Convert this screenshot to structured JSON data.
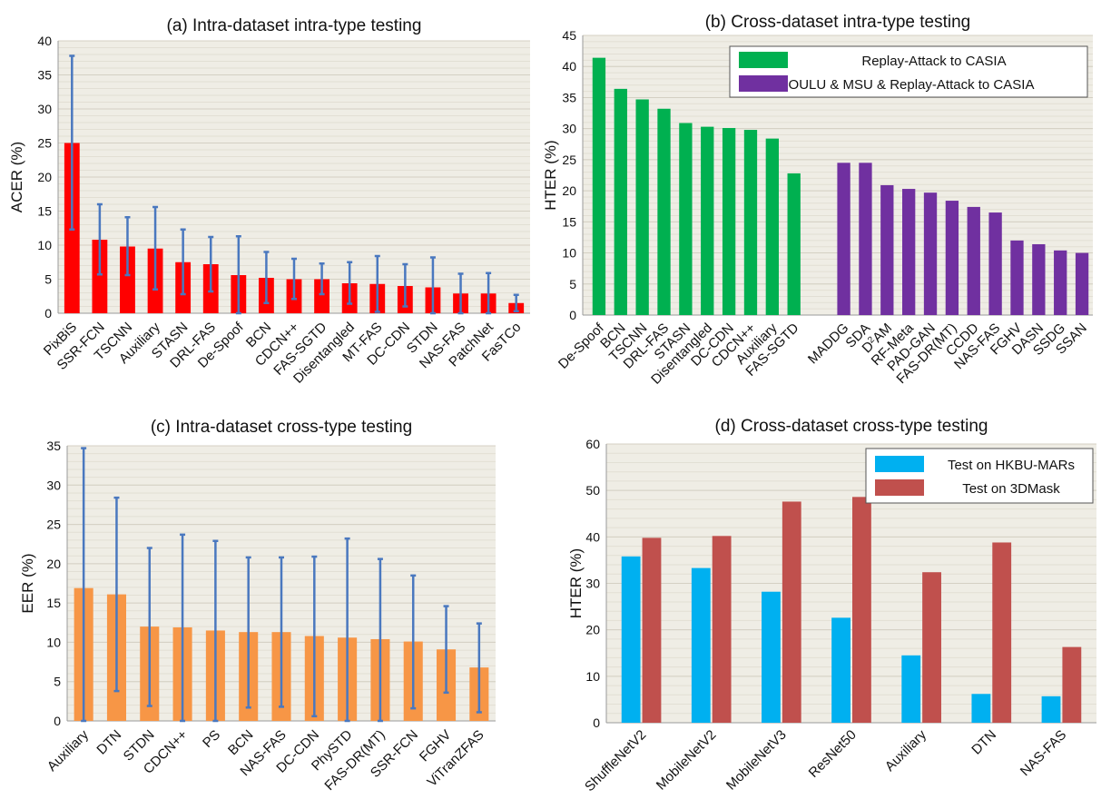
{
  "chart_data": [
    {
      "id": "a",
      "type": "bar",
      "title": "(a) Intra-dataset intra-type testing",
      "ylabel": "ACER (%)",
      "xlabel": "",
      "ylim": [
        0,
        40
      ],
      "yticks": [
        0,
        5,
        10,
        15,
        20,
        25,
        30,
        35,
        40
      ],
      "grid": true,
      "color": "#ff0000",
      "errorbar_color": "#4a78bf",
      "categories": [
        "PixBiS",
        "SSR-FCN",
        "TSCNN",
        "Auxiliary",
        "STASN",
        "DRL-FAS",
        "De-Spoof",
        "BCN",
        "CDCN++",
        "FAS-SGTD",
        "Disentangled",
        "MT-FAS",
        "DC-CDN",
        "STDN",
        "NAS-FAS",
        "PatchNet",
        "FasTCo"
      ],
      "values": [
        25.0,
        10.8,
        9.8,
        9.5,
        7.5,
        7.2,
        5.6,
        5.2,
        5.0,
        5.0,
        4.4,
        4.3,
        4.0,
        3.8,
        2.9,
        2.9,
        1.5
      ],
      "err_low": [
        12.3,
        5.7,
        5.6,
        3.5,
        2.8,
        3.2,
        0.0,
        1.5,
        2.1,
        2.8,
        1.4,
        0.2,
        1.0,
        0.0,
        0.0,
        0.0,
        0.3
      ],
      "err_high": [
        37.8,
        16.0,
        14.1,
        15.6,
        12.3,
        11.2,
        11.3,
        9.0,
        8.0,
        7.3,
        7.5,
        8.4,
        7.2,
        8.2,
        5.8,
        5.9,
        2.7
      ]
    },
    {
      "id": "b",
      "type": "bar",
      "title": "(b) Cross-dataset intra-type testing",
      "ylabel": "HTER (%)",
      "xlabel": "",
      "ylim": [
        0,
        45
      ],
      "yticks": [
        0,
        5,
        10,
        15,
        20,
        25,
        30,
        35,
        40,
        45
      ],
      "grid": true,
      "legend": "top-right",
      "series": [
        {
          "name": "Replay-Attack to CASIA",
          "color": "#00b050",
          "categories": [
            "De-Spoof",
            "BCN",
            "TSCNN",
            "DRL-FAS",
            "STASN",
            "Disentangled",
            "DC-CDN",
            "CDCN++",
            "Auxiliary",
            "FAS-SGTD"
          ],
          "values": [
            41.4,
            36.4,
            34.7,
            33.2,
            30.9,
            30.3,
            30.1,
            29.8,
            28.4,
            22.8
          ]
        },
        {
          "name": "OULU & MSU & Replay-Attack to CASIA",
          "color": "#7030a0",
          "categories": [
            "MADDG",
            "SDA",
            "D2AM",
            "RF-Meta",
            "PAD-GAN",
            "FAS-DR(MT)",
            "CCDD",
            "NAS-FAS",
            "FGHV",
            "DASN",
            "SSDG",
            "SSAN"
          ],
          "values": [
            24.5,
            24.5,
            20.9,
            20.3,
            19.7,
            18.4,
            17.4,
            16.5,
            12.0,
            11.4,
            10.4,
            10.0
          ]
        }
      ]
    },
    {
      "id": "c",
      "type": "bar",
      "title": "(c) Intra-dataset cross-type testing",
      "ylabel": "EER (%)",
      "xlabel": "",
      "ylim": [
        0,
        35
      ],
      "yticks": [
        0,
        5,
        10,
        15,
        20,
        25,
        30,
        35
      ],
      "grid": true,
      "color": "#f79646",
      "errorbar_color": "#4a78bf",
      "categories": [
        "Auxiliary",
        "DTN",
        "STDN",
        "CDCN++",
        "PS",
        "BCN",
        "NAS-FAS",
        "DC-CDN",
        "PhySTD",
        "FAS-DR(MT)",
        "SSR-FCN",
        "FGHV",
        "ViTranZFAS"
      ],
      "values": [
        16.9,
        16.1,
        12.0,
        11.9,
        11.5,
        11.3,
        11.3,
        10.8,
        10.6,
        10.4,
        10.1,
        9.1,
        6.8
      ],
      "err_low": [
        0.0,
        3.8,
        1.9,
        0.0,
        0.0,
        1.7,
        1.8,
        0.6,
        0.0,
        0.0,
        1.6,
        3.6,
        1.1
      ],
      "err_high": [
        34.7,
        28.4,
        22.0,
        23.7,
        22.9,
        20.8,
        20.8,
        20.9,
        23.2,
        20.6,
        18.5,
        14.6,
        12.4
      ]
    },
    {
      "id": "d",
      "type": "bar",
      "title": "(d) Cross-dataset cross-type testing",
      "ylabel": "HTER (%)",
      "xlabel": "",
      "ylim": [
        0,
        60
      ],
      "yticks": [
        0,
        10,
        20,
        30,
        40,
        50,
        60
      ],
      "grid": true,
      "legend": "top-right",
      "categories": [
        "ShuffleNetV2",
        "MobileNetV2",
        "MobileNetV3",
        "ResNet50",
        "Auxiliary",
        "DTN",
        "NAS-FAS"
      ],
      "series": [
        {
          "name": "Test on HKBU-MARs",
          "color": "#00b0f0",
          "values": [
            35.8,
            33.3,
            28.2,
            22.6,
            14.5,
            6.2,
            5.7
          ]
        },
        {
          "name": "Test on 3DMask",
          "color": "#c0504d",
          "values": [
            39.8,
            40.2,
            47.6,
            48.6,
            32.4,
            38.8,
            16.3
          ]
        }
      ]
    }
  ]
}
